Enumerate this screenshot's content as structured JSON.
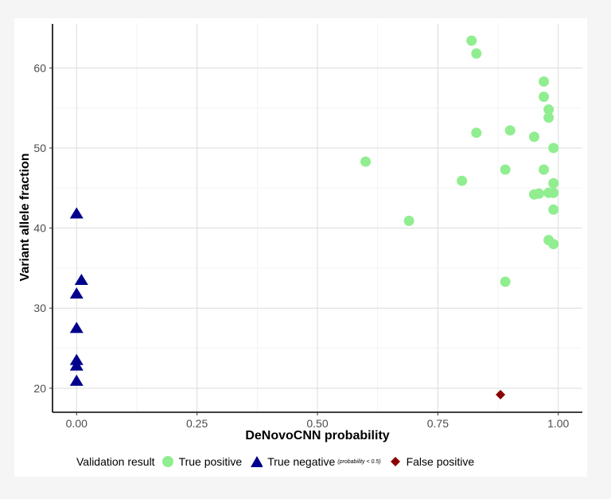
{
  "chart_data": {
    "type": "scatter",
    "xlabel": "DeNovoCNN probability",
    "ylabel": "Variant allele fraction",
    "xlim": [
      -0.05,
      1.05
    ],
    "ylim": [
      17,
      65.5
    ],
    "x_ticks": [
      0,
      0.25,
      0.5,
      0.75,
      1.0
    ],
    "x_tick_labels": [
      "0.00",
      "0.25",
      "0.50",
      "0.75",
      "1.00"
    ],
    "y_ticks": [
      20,
      30,
      40,
      50,
      60
    ],
    "y_tick_labels": [
      "20",
      "30",
      "40",
      "50",
      "60"
    ],
    "grid": true,
    "legend_position": "bottom",
    "legend_title": "Validation result",
    "series": [
      {
        "name": "True positive",
        "marker": "circle",
        "color": "#90ee90",
        "points": [
          [
            0.82,
            63.4
          ],
          [
            0.83,
            61.8
          ],
          [
            0.97,
            58.3
          ],
          [
            0.97,
            56.4
          ],
          [
            0.98,
            54.8
          ],
          [
            0.98,
            53.8
          ],
          [
            0.9,
            52.2
          ],
          [
            0.83,
            51.9
          ],
          [
            0.95,
            51.4
          ],
          [
            0.99,
            50.0
          ],
          [
            0.6,
            48.3
          ],
          [
            0.89,
            47.3
          ],
          [
            0.97,
            47.3
          ],
          [
            0.8,
            45.9
          ],
          [
            0.99,
            45.6
          ],
          [
            0.95,
            44.2
          ],
          [
            0.96,
            44.3
          ],
          [
            0.98,
            44.4
          ],
          [
            0.99,
            44.4
          ],
          [
            0.99,
            42.3
          ],
          [
            0.69,
            40.9
          ],
          [
            0.98,
            38.5
          ],
          [
            0.99,
            38.0
          ],
          [
            0.89,
            33.3
          ]
        ]
      },
      {
        "name": "True negative",
        "note": "(probability < 0.5)",
        "marker": "triangle",
        "color": "#00008b",
        "points": [
          [
            0.0,
            41.8
          ],
          [
            0.01,
            33.5
          ],
          [
            0.0,
            31.8
          ],
          [
            0.0,
            27.5
          ],
          [
            0.0,
            23.5
          ],
          [
            0.0,
            22.8
          ],
          [
            0.0,
            20.9
          ]
        ]
      },
      {
        "name": "False positive",
        "marker": "diamond",
        "color": "#8b0000",
        "points": [
          [
            0.88,
            19.2
          ]
        ]
      }
    ]
  }
}
